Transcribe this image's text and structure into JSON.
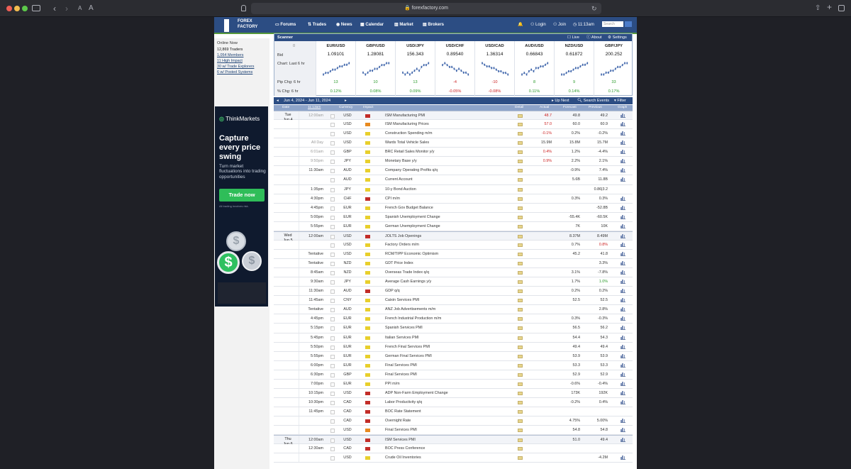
{
  "browser": {
    "url": "forexfactory.com",
    "reader_a": "A",
    "reader_b": "A",
    "back": "‹",
    "fwd": "›"
  },
  "header": {
    "logo_top": "FOREX",
    "logo_bottom": "FACTORY",
    "nav": [
      "Forums",
      "Trades",
      "News",
      "Calendar",
      "Market",
      "Brokers"
    ],
    "login": "Login",
    "join": "Join",
    "time": "11:13am",
    "search_placeholder": "Search"
  },
  "online": {
    "title": "Online Now",
    "items": [
      "12,869 Traders",
      "1,054 Members",
      "11 High Impact",
      "30 w/ Trade Explorers",
      "6 w/ Posted Systems"
    ]
  },
  "ad": {
    "brand_a": "Think",
    "brand_b": "Markets",
    "headline": "Capture every price swing",
    "sub": "Turn market fluctuations into trading opportunities",
    "button": "Trade now",
    "disclaimer": "All trading involves risk."
  },
  "scanner": {
    "title": "Scanner",
    "live": "Live",
    "about": "About",
    "settings": "Settings",
    "label_zero": "0",
    "label_bid": "Bid",
    "label_chart": "Chart: Last 6 hr",
    "label_pip": "Pip Chg: 6 hr",
    "label_pct": "% Chg: 6 hr",
    "pairs": [
      {
        "name": "EUR/USD",
        "price": "1.09101",
        "pip": "13",
        "pct": "0.12%",
        "dir": "up",
        "chart": [
          3,
          4,
          4,
          5,
          6,
          6,
          7,
          8,
          8,
          9,
          9,
          10
        ]
      },
      {
        "name": "GBP/USD",
        "price": "1.28081",
        "pip": "10",
        "pct": "0.08%",
        "dir": "up",
        "chart": [
          4,
          3,
          4,
          5,
          5,
          6,
          6,
          7,
          8,
          8,
          9,
          9
        ]
      },
      {
        "name": "USD/JPY",
        "price": "156.343",
        "pip": "13",
        "pct": "0.09%",
        "dir": "up",
        "chart": [
          5,
          4,
          5,
          4,
          5,
          6,
          7,
          6,
          8,
          9,
          9,
          10
        ]
      },
      {
        "name": "USD/CHF",
        "price": "0.89540",
        "pip": "-4",
        "pct": "-0.05%",
        "dir": "down",
        "chart": [
          8,
          9,
          8,
          7,
          7,
          6,
          5,
          6,
          5,
          4,
          4,
          3
        ]
      },
      {
        "name": "USD/CAD",
        "price": "1.36314",
        "pip": "-10",
        "pct": "-0.08%",
        "dir": "down",
        "chart": [
          9,
          8,
          7,
          7,
          6,
          6,
          5,
          4,
          4,
          3,
          3,
          2
        ]
      },
      {
        "name": "AUD/USD",
        "price": "0.66843",
        "pip": "8",
        "pct": "0.11%",
        "dir": "up",
        "chart": [
          3,
          4,
          3,
          5,
          6,
          5,
          7,
          7,
          8,
          8,
          9,
          10
        ]
      },
      {
        "name": "NZD/USD",
        "price": "0.61872",
        "pip": "9",
        "pct": "0.14%",
        "dir": "up",
        "chart": [
          3,
          3,
          4,
          5,
          5,
          6,
          7,
          7,
          8,
          9,
          9,
          10
        ]
      },
      {
        "name": "GBP/JPY",
        "price": "200.252",
        "pip": "33",
        "pct": "0.17%",
        "dir": "up",
        "chart": [
          4,
          4,
          5,
          5,
          6,
          6,
          7,
          8,
          8,
          9,
          10,
          10
        ]
      }
    ]
  },
  "calendar": {
    "range": "Jun 4, 2024 - Jun 11, 2024",
    "up_next": "Up Next",
    "search_events": "Search Events",
    "filter": "Filter",
    "columns": [
      "Date",
      "11:13am",
      "Currency",
      "Impact",
      "Detail",
      "Actual",
      "Forecast",
      "Previous",
      "Graph"
    ],
    "rows": [
      {
        "day": "Tue",
        "date": "Jun 4",
        "time": "12:00am",
        "tg": true,
        "cur": "USD",
        "imp": "red",
        "event": "ISM Manufacturing PMI",
        "actual": "48.7",
        "ac": "red",
        "forecast": "49.8",
        "previous": "49.2",
        "graph": true
      },
      {
        "time": "",
        "cur": "USD",
        "imp": "ora",
        "event": "ISM Manufacturing Prices",
        "actual": "57.0",
        "ac": "red",
        "forecast": "60.0",
        "previous": "60.9",
        "graph": true
      },
      {
        "time": "",
        "cur": "USD",
        "imp": "yel",
        "event": "Construction Spending m/m",
        "actual": "-0.1%",
        "ac": "red",
        "forecast": "0.2%",
        "previous": "-0.2%",
        "graph": true
      },
      {
        "time": "All Day",
        "tg": true,
        "cur": "USD",
        "imp": "yel",
        "event": "Wards Total Vehicle Sales",
        "actual": "15.9M",
        "forecast": "15.8M",
        "previous": "15.7M",
        "graph": true
      },
      {
        "time": "6:01am",
        "tg": true,
        "cur": "GBP",
        "imp": "yel",
        "event": "BRC Retail Sales Monitor y/y",
        "actual": "0.4%",
        "ac": "red",
        "forecast": "1.2%",
        "previous": "-4.4%",
        "graph": true
      },
      {
        "time": "9:50pm",
        "tg": true,
        "cur": "JPY",
        "imp": "yel",
        "event": "Monetary Base y/y",
        "actual": "0.9%",
        "ac": "red",
        "forecast": "2.2%",
        "previous": "2.1%",
        "graph": true
      },
      {
        "time": "11:30am",
        "cur": "AUD",
        "imp": "yel",
        "event": "Company Operating Profits q/q",
        "actual": "",
        "forecast": "-0.9%",
        "previous": "7.4%",
        "graph": true
      },
      {
        "time": "",
        "cur": "AUD",
        "imp": "yel",
        "event": "Current Account",
        "actual": "",
        "forecast": "5.6B",
        "previous": "11.8B",
        "graph": true
      },
      {
        "time": "1:35pm",
        "cur": "JPY",
        "imp": "yel",
        "event": "10-y Bond Auction",
        "actual": "",
        "forecast": "",
        "previous": "0.86|3.2",
        "graph": false
      },
      {
        "time": "4:30pm",
        "cur": "CHF",
        "imp": "red",
        "event": "CPI m/m",
        "actual": "",
        "forecast": "0.3%",
        "previous": "0.3%",
        "graph": true
      },
      {
        "time": "4:45pm",
        "cur": "EUR",
        "imp": "yel",
        "event": "French Gov Budget Balance",
        "actual": "",
        "forecast": "",
        "previous": "-52.8B",
        "graph": true
      },
      {
        "time": "5:00pm",
        "cur": "EUR",
        "imp": "yel",
        "event": "Spanish Unemployment Change",
        "actual": "",
        "forecast": "-55.4K",
        "previous": "-60.5K",
        "graph": true
      },
      {
        "time": "5:55pm",
        "cur": "EUR",
        "imp": "yel",
        "event": "German Unemployment Change",
        "actual": "",
        "forecast": "7K",
        "previous": "10K",
        "graph": true
      },
      {
        "day": "Wed",
        "date": "Jun 5",
        "time": "12:00am",
        "cur": "USD",
        "imp": "red",
        "event": "JOLTS Job Openings",
        "actual": "",
        "forecast": "8.37M",
        "previous": "8.49M",
        "graph": true
      },
      {
        "time": "",
        "cur": "USD",
        "imp": "yel",
        "event": "Factory Orders m/m",
        "actual": "",
        "forecast": "0.7%",
        "previous": "0.8%",
        "pc": "red",
        "graph": true
      },
      {
        "time": "Tentative",
        "cur": "USD",
        "imp": "yel",
        "event": "RCM/TIPP Economic Optimism",
        "actual": "",
        "forecast": "45.2",
        "previous": "41.8",
        "graph": true
      },
      {
        "time": "Tentative",
        "cur": "NZD",
        "imp": "yel",
        "event": "GDT Price Index",
        "actual": "",
        "forecast": "",
        "previous": "3.3%",
        "graph": true
      },
      {
        "time": "8:45am",
        "cur": "NZD",
        "imp": "yel",
        "event": "Overseas Trade Index q/q",
        "actual": "",
        "forecast": "3.1%",
        "previous": "-7.8%",
        "graph": true
      },
      {
        "time": "9:30am",
        "cur": "JPY",
        "imp": "yel",
        "event": "Average Cash Earnings y/y",
        "actual": "",
        "forecast": "1.7%",
        "previous": "1.0%",
        "pc": "grn",
        "graph": true
      },
      {
        "time": "11:30am",
        "cur": "AUD",
        "imp": "red",
        "event": "GDP q/q",
        "actual": "",
        "forecast": "0.2%",
        "previous": "0.2%",
        "graph": true
      },
      {
        "time": "11:45am",
        "cur": "CNY",
        "imp": "yel",
        "event": "Caixin Services PMI",
        "actual": "",
        "forecast": "52.5",
        "previous": "52.5",
        "graph": true
      },
      {
        "time": "Tentative",
        "cur": "AUD",
        "imp": "yel",
        "event": "ANZ Job Advertisements m/m",
        "actual": "",
        "forecast": "",
        "previous": "2.8%",
        "graph": true
      },
      {
        "time": "4:45pm",
        "cur": "EUR",
        "imp": "yel",
        "event": "French Industrial Production m/m",
        "actual": "",
        "forecast": "0.3%",
        "previous": "-0.3%",
        "graph": true
      },
      {
        "time": "5:15pm",
        "cur": "EUR",
        "imp": "yel",
        "event": "Spanish Services PMI",
        "actual": "",
        "forecast": "56.5",
        "previous": "56.2",
        "graph": true
      },
      {
        "time": "5:45pm",
        "cur": "EUR",
        "imp": "yel",
        "event": "Italian Services PMI",
        "actual": "",
        "forecast": "54.4",
        "previous": "54.3",
        "graph": true
      },
      {
        "time": "5:50pm",
        "cur": "EUR",
        "imp": "yel",
        "event": "French Final Services PMI",
        "actual": "",
        "forecast": "49.4",
        "previous": "49.4",
        "graph": true
      },
      {
        "time": "5:55pm",
        "cur": "EUR",
        "imp": "yel",
        "event": "German Final Services PMI",
        "actual": "",
        "forecast": "53.9",
        "previous": "53.9",
        "graph": true
      },
      {
        "time": "6:00pm",
        "cur": "EUR",
        "imp": "yel",
        "event": "Final Services PMI",
        "actual": "",
        "forecast": "53.3",
        "previous": "53.3",
        "graph": true
      },
      {
        "time": "6:30pm",
        "cur": "GBP",
        "imp": "yel",
        "event": "Final Services PMI",
        "actual": "",
        "forecast": "52.9",
        "previous": "52.9",
        "graph": true
      },
      {
        "time": "7:00pm",
        "cur": "EUR",
        "imp": "yel",
        "event": "PPI m/m",
        "actual": "",
        "forecast": "-0.6%",
        "previous": "-0.4%",
        "graph": true
      },
      {
        "time": "10:15pm",
        "cur": "USD",
        "imp": "red",
        "event": "ADP Non-Farm Employment Change",
        "actual": "",
        "forecast": "173K",
        "previous": "192K",
        "graph": true
      },
      {
        "time": "10:30pm",
        "cur": "CAD",
        "imp": "red",
        "event": "Labor Productivity q/q",
        "actual": "",
        "forecast": "-0.2%",
        "previous": "0.4%",
        "graph": true
      },
      {
        "time": "11:45pm",
        "cur": "CAD",
        "imp": "red",
        "event": "BOC Rate Statement",
        "actual": "",
        "forecast": "",
        "previous": "",
        "graph": false
      },
      {
        "time": "",
        "cur": "CAD",
        "imp": "red",
        "event": "Overnight Rate",
        "actual": "",
        "forecast": "4.75%",
        "previous": "5.00%",
        "graph": true
      },
      {
        "time": "",
        "cur": "USD",
        "imp": "ora",
        "event": "Final Services PMI",
        "actual": "",
        "forecast": "54.8",
        "previous": "54.8",
        "graph": true
      },
      {
        "day": "Thu",
        "date": "Jun 6",
        "time": "12:00am",
        "cur": "USD",
        "imp": "red",
        "event": "ISM Services PMI",
        "actual": "",
        "forecast": "51.0",
        "previous": "49.4",
        "graph": true
      },
      {
        "time": "12:30am",
        "cur": "CAD",
        "imp": "red",
        "event": "BOC Press Conference",
        "actual": "",
        "forecast": "",
        "previous": "",
        "graph": false
      },
      {
        "time": "",
        "cur": "USD",
        "imp": "yel",
        "event": "Crude Oil Inventories",
        "actual": "",
        "forecast": "",
        "previous": "-4.2M",
        "graph": true
      }
    ]
  }
}
